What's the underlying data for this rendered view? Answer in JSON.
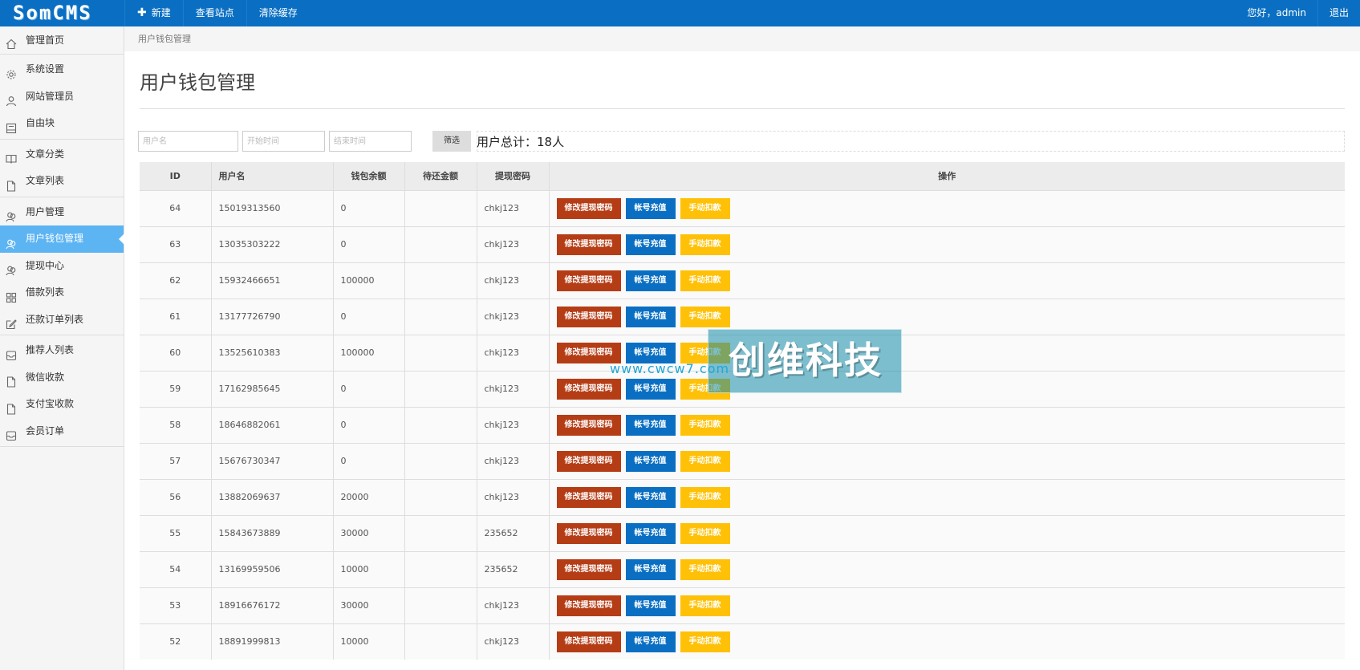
{
  "app": {
    "logo": "SomCMS"
  },
  "topnav": {
    "new_label": "新建",
    "view_site": "查看站点",
    "clear_cache": "清除缓存"
  },
  "topright": {
    "greeting": "您好，admin",
    "logout": "退出"
  },
  "sidebar": {
    "groups": [
      [
        {
          "label": "管理首页",
          "icon": "home-icon"
        }
      ],
      [
        {
          "label": "系统设置",
          "icon": "gear-icon"
        },
        {
          "label": "网站管理员",
          "icon": "user-icon"
        },
        {
          "label": "自由块",
          "icon": "block-icon"
        }
      ],
      [
        {
          "label": "文章分类",
          "icon": "book-icon"
        },
        {
          "label": "文章列表",
          "icon": "file-icon"
        }
      ],
      [
        {
          "label": "用户管理",
          "icon": "users-icon"
        },
        {
          "label": "用户钱包管理",
          "icon": "users-icon",
          "active": true
        },
        {
          "label": "提现中心",
          "icon": "users-icon"
        },
        {
          "label": "借款列表",
          "icon": "grid-icon"
        },
        {
          "label": "还款订单列表",
          "icon": "edit-icon"
        }
      ],
      [
        {
          "label": "推荐人列表",
          "icon": "inbox-icon"
        },
        {
          "label": "微信收款",
          "icon": "file-icon"
        },
        {
          "label": "支付宝收款",
          "icon": "file-icon"
        },
        {
          "label": "会员订单",
          "icon": "inbox-icon"
        }
      ]
    ]
  },
  "breadcrumb": "用户钱包管理",
  "page_title": "用户钱包管理",
  "filter": {
    "username_placeholder": "用户名",
    "start_placeholder": "开始时间",
    "end_placeholder": "结束时间",
    "button": "筛选",
    "total": "用户总计：18人"
  },
  "table": {
    "headers": [
      "ID",
      "用户名",
      "钱包余额",
      "待还金额",
      "提现密码",
      "操作"
    ],
    "actions": {
      "change_pwd": "修改提现密码",
      "recharge": "帐号充值",
      "deduct": "手动扣款"
    },
    "rows": [
      {
        "id": "64",
        "username": "15019313560",
        "balance": "0",
        "due": "",
        "pwd": "chkj123"
      },
      {
        "id": "63",
        "username": "13035303222",
        "balance": "0",
        "due": "",
        "pwd": "chkj123"
      },
      {
        "id": "62",
        "username": "15932466651",
        "balance": "100000",
        "due": "",
        "pwd": "chkj123"
      },
      {
        "id": "61",
        "username": "13177726790",
        "balance": "0",
        "due": "",
        "pwd": "chkj123"
      },
      {
        "id": "60",
        "username": "13525610383",
        "balance": "100000",
        "due": "",
        "pwd": "chkj123"
      },
      {
        "id": "59",
        "username": "17162985645",
        "balance": "0",
        "due": "",
        "pwd": "chkj123"
      },
      {
        "id": "58",
        "username": "18646882061",
        "balance": "0",
        "due": "",
        "pwd": "chkj123"
      },
      {
        "id": "57",
        "username": "15676730347",
        "balance": "0",
        "due": "",
        "pwd": "chkj123"
      },
      {
        "id": "56",
        "username": "13882069637",
        "balance": "20000",
        "due": "",
        "pwd": "chkj123"
      },
      {
        "id": "55",
        "username": "15843673889",
        "balance": "30000",
        "due": "",
        "pwd": "235652"
      },
      {
        "id": "54",
        "username": "13169959506",
        "balance": "10000",
        "due": "",
        "pwd": "235652"
      },
      {
        "id": "53",
        "username": "18916676172",
        "balance": "30000",
        "due": "",
        "pwd": "chkj123"
      },
      {
        "id": "52",
        "username": "18891999813",
        "balance": "10000",
        "due": "",
        "pwd": "chkj123"
      }
    ]
  },
  "watermark": {
    "text": "创维科技",
    "url": "www.cwcw7.com"
  },
  "colors": {
    "topbar": "#0a6fc2",
    "active": "#5db4f2",
    "red": "#b53d16",
    "blue": "#0a6fc2",
    "yellow": "#ffc107"
  }
}
